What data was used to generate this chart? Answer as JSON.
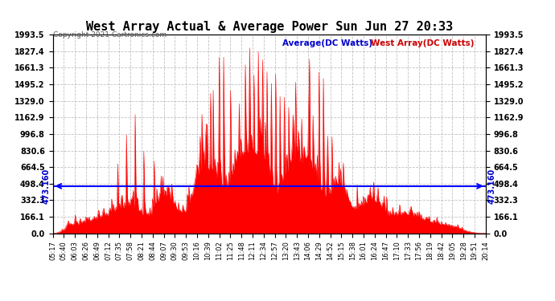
{
  "title": "West Array Actual & Average Power Sun Jun 27 20:33",
  "copyright": "Copyright 2021 Cartronics.com",
  "legend_average": "Average(DC Watts)",
  "legend_west": "West Array(DC Watts)",
  "average_value": 473.16,
  "y_max": 1993.5,
  "y_min": 0.0,
  "y_ticks": [
    0.0,
    166.1,
    332.3,
    498.4,
    664.5,
    830.6,
    996.8,
    1162.9,
    1329.0,
    1495.2,
    1661.3,
    1827.4,
    1993.5
  ],
  "x_labels": [
    "05:17",
    "05:40",
    "06:03",
    "06:26",
    "06:49",
    "07:12",
    "07:35",
    "07:58",
    "08:21",
    "08:44",
    "09:07",
    "09:30",
    "09:53",
    "10:16",
    "10:39",
    "11:02",
    "11:25",
    "11:48",
    "12:11",
    "12:34",
    "12:57",
    "13:20",
    "13:43",
    "14:06",
    "14:29",
    "14:52",
    "15:15",
    "15:38",
    "16:01",
    "16:24",
    "16:47",
    "17:10",
    "17:33",
    "17:56",
    "18:19",
    "18:42",
    "19:05",
    "19:28",
    "19:51",
    "20:14"
  ],
  "bg_color": "#ffffff",
  "fill_color": "#ff0000",
  "line_color": "#ff0000",
  "average_line_color": "#0000ff",
  "grid_color": "#bbbbbb",
  "title_color": "#000000",
  "avg_label_color": "#0000cc",
  "west_label_color": "#cc0000"
}
